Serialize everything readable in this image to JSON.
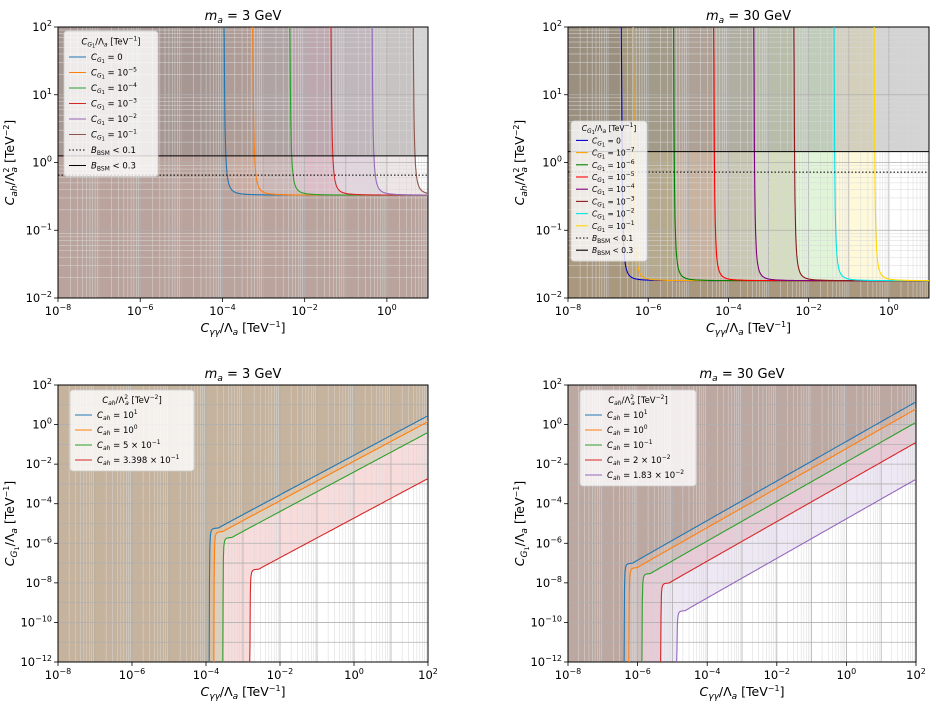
{
  "chart_data": [
    {
      "type": "line",
      "title_text": "m",
      "title_sub": "a",
      "title_rest": " = 3 GeV",
      "xlabel": "C_γγ/Λ_a [TeV⁻¹]",
      "ylabel": "C_ah/Λ_a² [TeV⁻²]",
      "xscale": "log",
      "yscale": "log",
      "xlim": [
        1e-08,
        10
      ],
      "ylim": [
        0.01,
        100
      ],
      "grid": true,
      "legend_position": "top-left",
      "legend_title": "C_G1/Λ_a [TeV⁻¹]",
      "x_ticks": [
        "10-8",
        "10-6",
        "10-4",
        "10-2",
        "100"
      ],
      "y_ticks": [
        "10-2",
        "10-1",
        "100",
        "101",
        "102"
      ],
      "series": [
        {
          "name": "C_G1 = 0",
          "color": "#1f77b4",
          "x0": 0.0001,
          "ymin": 0.33
        },
        {
          "name": "C_G1 = 10-5",
          "color": "#ff7f0e",
          "x0": 0.0005,
          "ymin": 0.33
        },
        {
          "name": "C_G1 = 10-4",
          "color": "#2ca02c",
          "x0": 0.004,
          "ymin": 0.33
        },
        {
          "name": "C_G1 = 10-3",
          "color": "#d62728",
          "x0": 0.04,
          "ymin": 0.33
        },
        {
          "name": "C_G1 = 10-2",
          "color": "#9467bd",
          "x0": 0.4,
          "ymin": 0.33
        },
        {
          "name": "C_G1 = 10-1",
          "color": "#8c564b",
          "x0": 4,
          "ymin": 0.33
        }
      ],
      "thresholds": [
        {
          "name": "B_BSM < 0.1",
          "style": "dotted",
          "y": 0.65
        },
        {
          "name": "B_BSM < 0.3",
          "style": "solid",
          "y": 1.25
        }
      ]
    },
    {
      "type": "line",
      "title_text": "m",
      "title_sub": "a",
      "title_rest": " = 30 GeV",
      "xlabel": "C_γγ/Λ_a [TeV⁻¹]",
      "ylabel": "C_ah/Λ_a² [TeV⁻²]",
      "xscale": "log",
      "yscale": "log",
      "xlim": [
        1e-08,
        10
      ],
      "ylim": [
        0.01,
        100
      ],
      "grid": true,
      "legend_position": "center-left",
      "legend_title": "C_G1/Λ_a [TeV⁻¹]",
      "x_ticks": [
        "10-8",
        "10-6",
        "10-4",
        "10-2",
        "100"
      ],
      "y_ticks": [
        "10-2",
        "10-1",
        "100",
        "101",
        "102"
      ],
      "series": [
        {
          "name": "C_G1 = 0",
          "color": "#0000cc",
          "x0": 2e-07,
          "ymin": 0.018
        },
        {
          "name": "C_G1 = 10-7",
          "color": "#ffa500",
          "x0": 4e-07,
          "ymin": 0.018
        },
        {
          "name": "C_G1 = 10-6",
          "color": "#008000",
          "x0": 4e-06,
          "ymin": 0.018
        },
        {
          "name": "C_G1 = 10-5",
          "color": "#ff0000",
          "x0": 4e-05,
          "ymin": 0.018
        },
        {
          "name": "C_G1 = 10-4",
          "color": "#800080",
          "x0": 0.0004,
          "ymin": 0.018
        },
        {
          "name": "C_G1 = 10-3",
          "color": "#8b1a1a",
          "x0": 0.004,
          "ymin": 0.018
        },
        {
          "name": "C_G1 = 10-2",
          "color": "#00e5e5",
          "x0": 0.04,
          "ymin": 0.018
        },
        {
          "name": "C_G1 = 10-1",
          "color": "#ffd700",
          "x0": 0.4,
          "ymin": 0.018
        }
      ],
      "thresholds": [
        {
          "name": "B_BSM < 0.1",
          "style": "dotted",
          "y": 0.72
        },
        {
          "name": "B_BSM < 0.3",
          "style": "solid",
          "y": 1.45
        }
      ]
    },
    {
      "type": "line",
      "title_text": "m",
      "title_sub": "a",
      "title_rest": " = 3 GeV",
      "xlabel": "C_γγ/Λ_a [TeV⁻¹]",
      "ylabel": "C_G1/Λ_a [TeV⁻¹]",
      "xscale": "log",
      "yscale": "log",
      "xlim": [
        1e-08,
        100
      ],
      "ylim": [
        1e-12,
        100
      ],
      "grid": true,
      "legend_position": "top-left",
      "legend_title": "C_ah/Λ_a² [TeV⁻²]",
      "x_ticks": [
        "10-8",
        "10-6",
        "10-4",
        "10-2",
        "100",
        "102"
      ],
      "y_ticks": [
        "10-12",
        "10-10",
        "10-8",
        "10-6",
        "10-4",
        "10-2",
        "100",
        "102"
      ],
      "series": [
        {
          "name": "C_ah = 101",
          "color": "#1f77b4",
          "xv": 0.00012,
          "yk": 6e-06
        },
        {
          "name": "C_ah = 100",
          "color": "#ff7f0e",
          "xv": 0.00016,
          "yk": 4e-06
        },
        {
          "name": "C_ah = 5 × 10-1",
          "color": "#2ca02c",
          "xv": 0.00028,
          "yk": 2e-06
        },
        {
          "name": "C_ah = 3.398 × 10-1",
          "color": "#d62728",
          "xv": 0.0015,
          "yk": 5e-08
        }
      ]
    },
    {
      "type": "line",
      "title_text": "m",
      "title_sub": "a",
      "title_rest": " = 30 GeV",
      "xlabel": "C_γγ/Λ_a [TeV⁻¹]",
      "ylabel": "C_G1/Λ_a [TeV⁻¹]",
      "xscale": "log",
      "yscale": "log",
      "xlim": [
        1e-08,
        100
      ],
      "ylim": [
        1e-12,
        100
      ],
      "grid": true,
      "legend_position": "top-left",
      "legend_title": "C_ah/Λ_a² [TeV⁻²]",
      "x_ticks": [
        "10-8",
        "10-6",
        "10-4",
        "10-2",
        "100",
        "102"
      ],
      "y_ticks": [
        "10-12",
        "10-10",
        "10-8",
        "10-6",
        "10-4",
        "10-2",
        "100",
        "102"
      ],
      "series": [
        {
          "name": "C_ah = 101",
          "color": "#1f77b4",
          "xv": 4e-07,
          "yk": 1e-07
        },
        {
          "name": "C_ah = 100",
          "color": "#ff7f0e",
          "xv": 5.5e-07,
          "yk": 6e-08
        },
        {
          "name": "C_ah = 10-1",
          "color": "#2ca02c",
          "xv": 1.3e-06,
          "yk": 3e-08
        },
        {
          "name": "C_ah = 2 × 10-2",
          "color": "#d62728",
          "xv": 4.5e-06,
          "yk": 1e-08
        },
        {
          "name": "C_ah = 1.83 × 10-2",
          "color": "#9467bd",
          "xv": 1.3e-05,
          "yk": 4e-10
        }
      ]
    }
  ]
}
